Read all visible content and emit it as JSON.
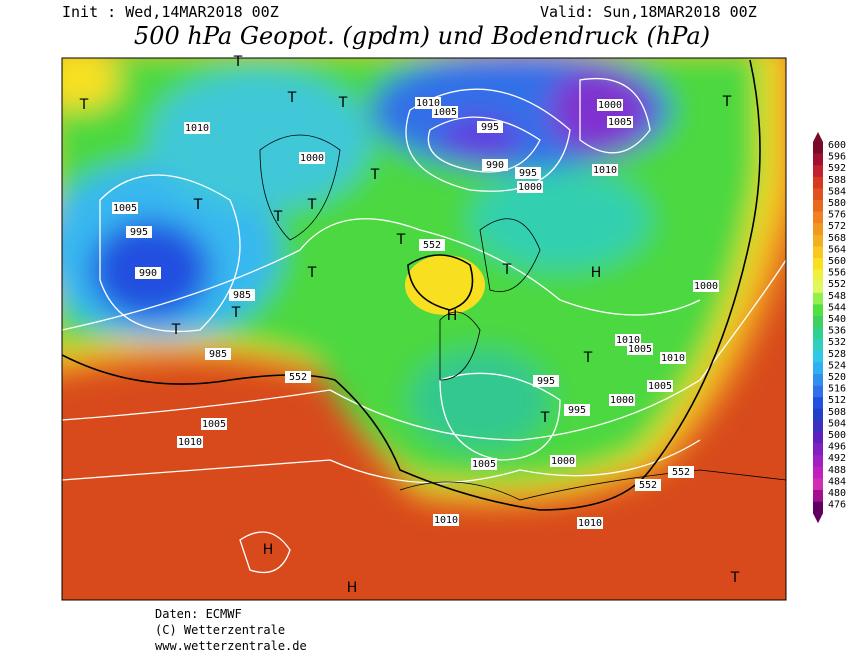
{
  "header": {
    "init": "Init : Wed,14MAR2018 00Z",
    "valid": "Valid: Sun,18MAR2018 00Z",
    "title": "500 hPa Geopot. (gpdm) und Bodendruck (hPa)"
  },
  "colorbar": {
    "ticks": [
      600,
      596,
      592,
      588,
      584,
      580,
      576,
      572,
      568,
      564,
      560,
      556,
      552,
      548,
      544,
      540,
      536,
      532,
      528,
      524,
      520,
      516,
      512,
      508,
      504,
      500,
      496,
      492,
      488,
      484,
      480,
      476
    ]
  },
  "map_labels": [
    "T",
    "T",
    "T",
    "T",
    "T",
    "T",
    "T",
    "T",
    "T",
    "T",
    "T",
    "T",
    "T",
    "T",
    "T",
    "T",
    "T",
    "H",
    "H",
    "H",
    "H",
    "1010",
    "1005",
    "1000",
    "995",
    "990",
    "985",
    "985",
    "1010",
    "1005",
    "1010",
    "995",
    "990",
    "1000",
    "1005",
    "995",
    "1000",
    "995",
    "995",
    "1010",
    "1005",
    "1000",
    "1010",
    "1005",
    "1000",
    "1010",
    "1005",
    "1010",
    "1005",
    "1000",
    "1010",
    "552",
    "552",
    "552",
    "552"
  ],
  "footer": {
    "source": "Daten: ECMWF",
    "copyright": "(C) Wetterzentrale",
    "url": "www.wetterzentrale.de"
  }
}
